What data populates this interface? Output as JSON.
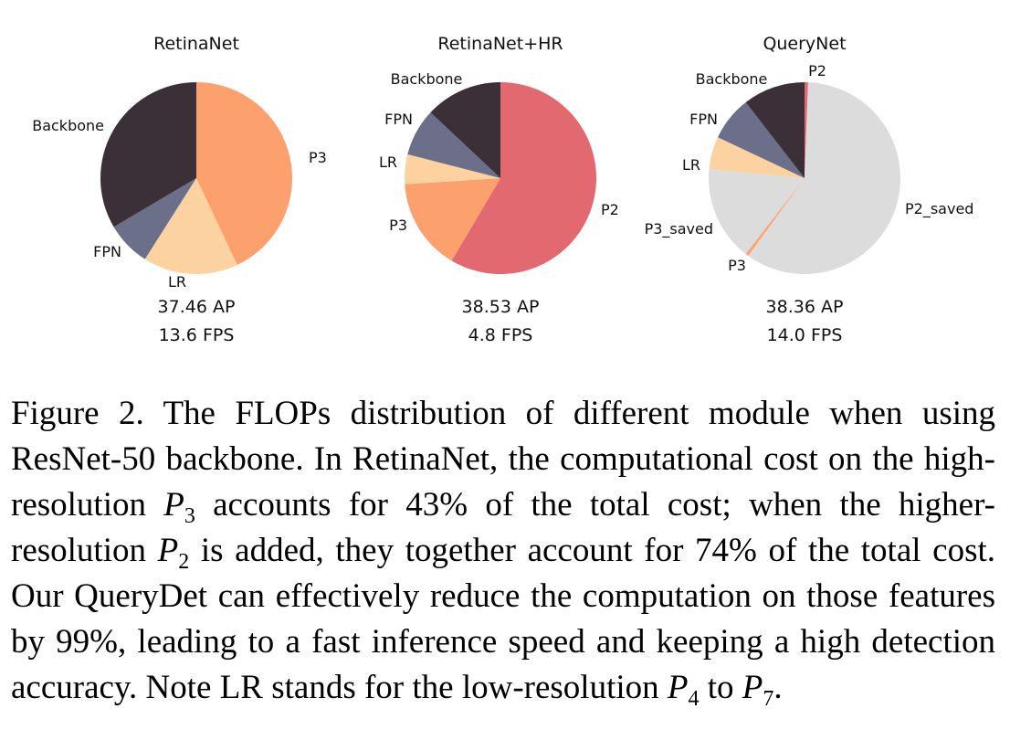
{
  "chart_data": [
    {
      "type": "pie",
      "title": "RetinaNet",
      "slices": [
        {
          "label": "P3",
          "value": 43.0,
          "color": "#FCA06E"
        },
        {
          "label": "LR",
          "value": 16.0,
          "color": "#FCD3A0"
        },
        {
          "label": "FPN",
          "value": 7.5,
          "color": "#6C6F8A"
        },
        {
          "label": "Backbone",
          "value": 33.5,
          "color": "#3C3038"
        }
      ],
      "stats": [
        "37.46 AP",
        "13.6 FPS"
      ]
    },
    {
      "type": "pie",
      "title": "RetinaNet+HR",
      "slices": [
        {
          "label": "P2",
          "value": 58.5,
          "color": "#E36970"
        },
        {
          "label": "P3",
          "value": 15.5,
          "color": "#FCA06E"
        },
        {
          "label": "LR",
          "value": 5.0,
          "color": "#FCD3A0"
        },
        {
          "label": "FPN",
          "value": 8.0,
          "color": "#6C6F8A"
        },
        {
          "label": "Backbone",
          "value": 13.0,
          "color": "#3C3038"
        }
      ],
      "stats": [
        "38.53 AP",
        "4.8 FPS"
      ]
    },
    {
      "type": "pie",
      "title": "QueryNet",
      "slices": [
        {
          "label": "P2",
          "value": 0.6,
          "color": "#E36970"
        },
        {
          "label": "P2_saved",
          "value": 59.4,
          "color": "#DCDCDC"
        },
        {
          "label": "P3",
          "value": 0.5,
          "color": "#FCA06E"
        },
        {
          "label": "P3_saved",
          "value": 16.0,
          "color": "#DCDCDC"
        },
        {
          "label": "LR",
          "value": 5.5,
          "color": "#FCD3A0"
        },
        {
          "label": "FPN",
          "value": 7.5,
          "color": "#6C6F8A"
        },
        {
          "label": "Backbone",
          "value": 10.5,
          "color": "#3C3038"
        }
      ],
      "stats": [
        "38.36 AP",
        "14.0 FPS"
      ]
    }
  ],
  "caption": {
    "segments": [
      {
        "t": "Figure 2. The FLOPs distribution of different module when using ResNet-50 backbone. In RetinaNet, the computational cost on the high-resolution "
      },
      {
        "t": "P",
        "i": true
      },
      {
        "t": "3",
        "sub": true
      },
      {
        "t": " accounts for 43% of the total cost; when the higher-resolution "
      },
      {
        "t": "P",
        "i": true
      },
      {
        "t": "2",
        "sub": true
      },
      {
        "t": " is added, they together account for 74% of the total cost. Our QueryDet can effectively reduce the computation on those features by 99%, leading to a fast inference speed and keeping a high detection accuracy.  Note LR stands for the low-resolution "
      },
      {
        "t": "P",
        "i": true
      },
      {
        "t": "4",
        "sub": true
      },
      {
        "t": " to "
      },
      {
        "t": "P",
        "i": true
      },
      {
        "t": "7",
        "sub": true
      },
      {
        "t": "."
      }
    ]
  }
}
